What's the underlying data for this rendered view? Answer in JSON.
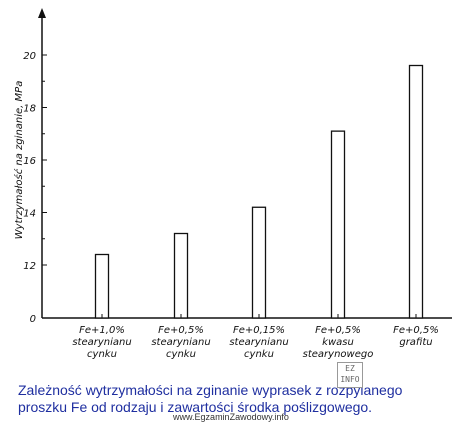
{
  "chart_data": {
    "type": "bar",
    "ylabel": "Wytrzymałość na zginanie, MPa",
    "ylim": [
      0,
      20
    ],
    "yticks": [
      "0",
      "12",
      "14",
      "16",
      "18",
      "20"
    ],
    "categories": [
      [
        "Fe+1,0%",
        "stearynianu",
        "cynku"
      ],
      [
        "Fe+0,5%",
        "stearynianu",
        "cynku"
      ],
      [
        "Fe+0,15%",
        "stearynianu",
        "cynku"
      ],
      [
        "Fe+0,5%",
        "kwasu",
        "stearynowego"
      ],
      [
        "Fe+0,5%",
        "grafitu"
      ]
    ],
    "values": [
      12.4,
      13.2,
      14.2,
      17.1,
      19.6
    ],
    "grid": false
  },
  "caption": {
    "line1": "Zależność wytrzymałości na zginanie wyprasek z rozpylanego",
    "line2": "proszku Fe od rodzaju i zawartości środka poślizgowego."
  },
  "source": "www.EgzaminZawodowy.info",
  "watermark": "EZ INFO"
}
